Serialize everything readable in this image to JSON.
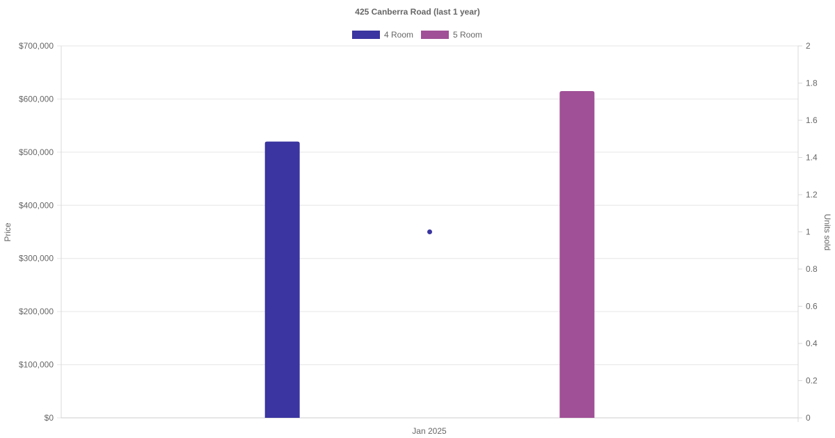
{
  "chart_data": {
    "type": "bar",
    "title": "425 Canberra Road (last 1 year)",
    "categories": [
      "Jan 2025"
    ],
    "series": [
      {
        "name": "4 Room",
        "type": "bar",
        "axis": "left",
        "color": "#3a35a0",
        "values": [
          520000
        ]
      },
      {
        "name": "5 Room",
        "type": "bar",
        "axis": "left",
        "color": "#a05096",
        "values": [
          615000
        ]
      },
      {
        "type": "point",
        "axis": "right",
        "color": "#3a35a0",
        "values": [
          1
        ]
      }
    ],
    "y_left": {
      "label": "Price",
      "min": 0,
      "max": 700000,
      "step": 100000,
      "tick_labels": [
        "$0",
        "$100,000",
        "$200,000",
        "$300,000",
        "$400,000",
        "$500,000",
        "$600,000",
        "$700,000"
      ]
    },
    "y_right": {
      "label": "Units sold",
      "min": 0,
      "max": 2,
      "step": 0.2,
      "tick_labels": [
        "0",
        "0.2",
        "0.4",
        "0.6",
        "0.8",
        "1",
        "1.2",
        "1.4",
        "1.6",
        "1.8",
        "2"
      ]
    },
    "x_tick_labels": [
      "Jan 2025"
    ],
    "legend": {
      "placement": "top",
      "entries": [
        "4 Room",
        "5 Room"
      ]
    },
    "grid": true
  }
}
